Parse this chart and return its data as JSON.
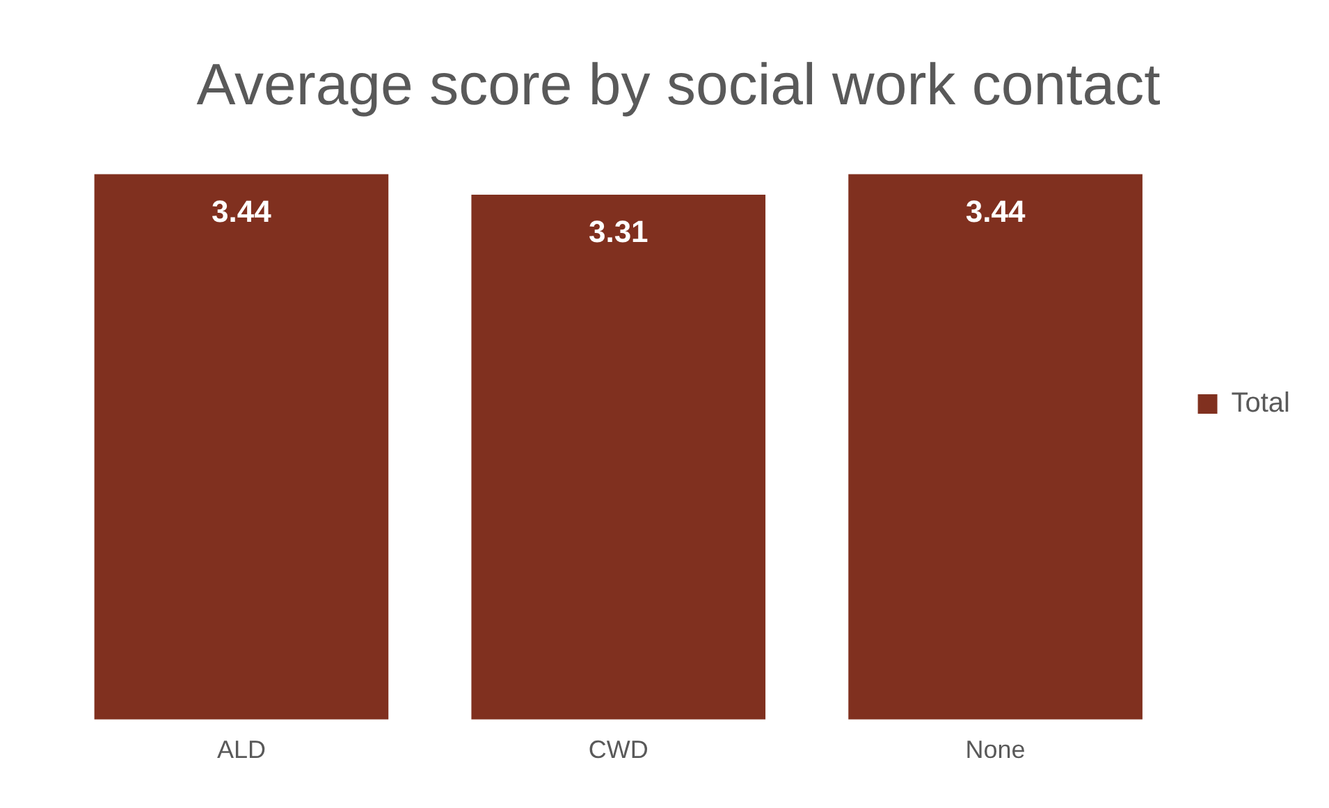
{
  "chart_data": {
    "type": "bar",
    "title": "Average score by social work contact",
    "categories": [
      "ALD",
      "CWD",
      "None"
    ],
    "series": [
      {
        "name": "Total",
        "color": "#80301f",
        "values": [
          3.44,
          3.31,
          3.44
        ]
      }
    ],
    "tick_labels": "x",
    "grid": false,
    "legend": "right",
    "data_labels": true
  }
}
